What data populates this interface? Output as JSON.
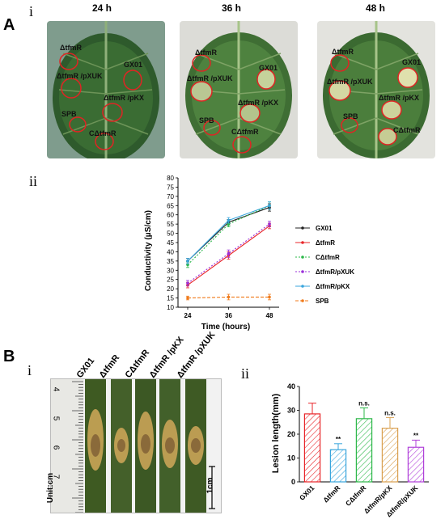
{
  "panel_A": {
    "letter": "A",
    "sub_i": "i",
    "sub_ii": "ii",
    "times": [
      "24 h",
      "36 h",
      "48 h"
    ],
    "spot_labels": {
      "tfmR": "ΔtfmR",
      "tfmR_pXUK": "ΔtfmR /pXUK",
      "gx01": "GX01",
      "tfmR_pKX": "ΔtfmR /pKX",
      "spb": "SPB",
      "c_tfmR": "CΔtfmR"
    }
  },
  "panel_B": {
    "letter": "B",
    "sub_i": "i",
    "sub_ii": "ii",
    "strip_labels": [
      "GX01",
      "ΔtfmR",
      "CΔtfmR",
      "ΔtfmR /pKX",
      "ΔtfmR /pXUK"
    ],
    "ruler_ticks": [
      "4",
      "5",
      "6",
      "7"
    ],
    "unit_label": "Unit:cm",
    "scale_label": "1cm"
  },
  "chart_data": [
    {
      "type": "line",
      "xlabel": "Time (hours)",
      "ylabel": "Conductivity (μS/cm)",
      "x": [
        24,
        36,
        48
      ],
      "xticks": [
        "24",
        "36",
        "48"
      ],
      "ylim": [
        10,
        80
      ],
      "yticks": [
        10,
        15,
        20,
        25,
        30,
        35,
        40,
        45,
        50,
        55,
        60,
        65,
        70,
        75,
        80
      ],
      "legend_position": "right",
      "series": [
        {
          "name": "GX01",
          "values": [
            35,
            56,
            64
          ],
          "errors": [
            1.5,
            1.5,
            2
          ],
          "color": "#222222",
          "dash": "solid"
        },
        {
          "name": "ΔtfmR",
          "values": [
            22,
            38,
            54
          ],
          "errors": [
            1.5,
            2,
            1.5
          ],
          "color": "#e8262a",
          "dash": "solid"
        },
        {
          "name": "CΔtfmR",
          "values": [
            33,
            55,
            65
          ],
          "errors": [
            1.5,
            1.5,
            2
          ],
          "color": "#2db84a",
          "dash": "dotted"
        },
        {
          "name": "ΔtfmR/pXUK",
          "values": [
            23,
            39,
            55
          ],
          "errors": [
            1.5,
            2,
            1.5
          ],
          "color": "#9b30d9",
          "dash": "dotted"
        },
        {
          "name": "ΔtfmR/pKX",
          "values": [
            35,
            57,
            65
          ],
          "errors": [
            1.5,
            1.5,
            2
          ],
          "color": "#3aa6dd",
          "dash": "solid"
        },
        {
          "name": "SPB",
          "values": [
            15,
            15.5,
            15.5
          ],
          "errors": [
            1,
            1.5,
            1.5
          ],
          "color": "#f07a1a",
          "dash": "dashed"
        }
      ]
    },
    {
      "type": "bar",
      "ylabel": "Lesion length(mm)",
      "ylim": [
        0,
        40
      ],
      "yticks": [
        0,
        10,
        20,
        30,
        40
      ],
      "categories": [
        "GX01",
        "ΔtfmR",
        "CΔtfmR",
        "ΔtfmR/pKX",
        "ΔtfmR/pXUK"
      ],
      "values": [
        28.5,
        13.5,
        26.5,
        22.5,
        14.5
      ],
      "errors": [
        4.5,
        2.5,
        4.5,
        4.5,
        3
      ],
      "significance": [
        "",
        "**",
        "n.s.",
        "n.s.",
        "**"
      ],
      "colors": [
        "#e8262a",
        "#3aa6dd",
        "#2db84a",
        "#d9a050",
        "#b040d9"
      ]
    }
  ]
}
